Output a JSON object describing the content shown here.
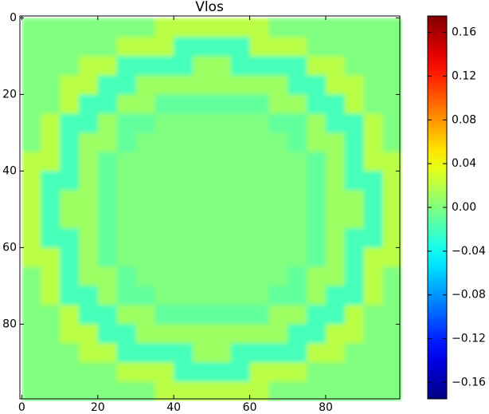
{
  "chart_data": {
    "type": "heatmap",
    "title": "Vlos",
    "colormap": "jet",
    "x": [
      2.5,
      7.5,
      12.5,
      17.5,
      22.5,
      27.5,
      32.5,
      37.5,
      42.5,
      47.5,
      52.5,
      57.5,
      62.5,
      67.5,
      72.5,
      77.5,
      82.5,
      87.5,
      92.5,
      97.5
    ],
    "y": [
      2.5,
      7.5,
      12.5,
      17.5,
      22.5,
      27.5,
      32.5,
      37.5,
      42.5,
      47.5,
      52.5,
      57.5,
      62.5,
      67.5,
      72.5,
      77.5,
      82.5,
      87.5,
      92.5,
      97.5
    ],
    "values": [
      [
        0,
        0,
        0,
        0,
        0,
        0,
        0,
        0.02,
        0.02,
        0.02,
        0.02,
        0.02,
        0.02,
        0,
        0,
        0,
        0,
        0,
        0,
        0
      ],
      [
        0,
        0,
        0,
        0,
        0,
        0.02,
        0.02,
        0.02,
        -0.02,
        -0.02,
        -0.02,
        -0.02,
        0.02,
        0.02,
        0.02,
        0,
        0,
        0,
        0,
        0
      ],
      [
        0,
        0,
        0,
        0.02,
        0.02,
        -0.02,
        -0.02,
        -0.02,
        -0.02,
        0.01,
        0.01,
        -0.02,
        -0.02,
        -0.02,
        -0.02,
        0.02,
        0.02,
        0,
        0,
        0
      ],
      [
        0,
        0,
        0.02,
        0.02,
        -0.02,
        -0.02,
        0.01,
        0.01,
        0.01,
        0.01,
        0.01,
        0.01,
        0.01,
        0.01,
        -0.02,
        -0.02,
        0.02,
        0.02,
        0,
        0
      ],
      [
        0,
        0,
        0.02,
        -0.02,
        -0.02,
        0.01,
        0.01,
        -0.01,
        -0.01,
        -0.01,
        -0.01,
        -0.01,
        -0.01,
        0.01,
        0.01,
        -0.02,
        -0.02,
        0.02,
        0,
        0
      ],
      [
        0,
        0.02,
        -0.02,
        -0.02,
        0.01,
        -0.01,
        -0.01,
        0,
        0,
        0,
        0,
        0,
        0,
        -0.01,
        -0.01,
        0.01,
        -0.02,
        -0.02,
        0.02,
        0
      ],
      [
        0,
        0.02,
        -0.02,
        0.01,
        0.01,
        -0.01,
        0,
        0,
        0,
        0,
        0,
        0,
        0,
        0,
        -0.01,
        0.01,
        0.01,
        -0.02,
        0.02,
        0
      ],
      [
        0.02,
        0.02,
        -0.02,
        0.01,
        -0.01,
        0,
        0,
        0,
        0,
        0,
        0,
        0,
        0,
        0,
        0,
        -0.01,
        0.01,
        -0.02,
        0.02,
        0.02
      ],
      [
        0.02,
        -0.02,
        -0.02,
        0.01,
        -0.01,
        0,
        0,
        0,
        0,
        0,
        0,
        0,
        0,
        0,
        0,
        -0.01,
        0.01,
        -0.02,
        -0.02,
        0.02
      ],
      [
        0.02,
        -0.02,
        0.01,
        0.01,
        -0.01,
        0,
        0,
        0,
        0,
        0,
        0,
        0,
        0,
        0,
        0,
        -0.01,
        0.01,
        0.01,
        -0.02,
        0.02
      ],
      [
        0.02,
        -0.02,
        0.01,
        0.01,
        -0.01,
        0,
        0,
        0,
        0,
        0,
        0,
        0,
        0,
        0,
        0,
        -0.01,
        0.01,
        0.01,
        -0.02,
        0.02
      ],
      [
        0.02,
        -0.02,
        -0.02,
        0.01,
        -0.01,
        0,
        0,
        0,
        0,
        0,
        0,
        0,
        0,
        0,
        0,
        -0.01,
        0.01,
        -0.02,
        -0.02,
        0.02
      ],
      [
        0.02,
        0.02,
        -0.02,
        0.01,
        -0.01,
        0,
        0,
        0,
        0,
        0,
        0,
        0,
        0,
        0,
        0,
        -0.01,
        0.01,
        -0.02,
        0.02,
        0.02
      ],
      [
        0,
        0.02,
        -0.02,
        0.01,
        0.01,
        -0.01,
        0,
        0,
        0,
        0,
        0,
        0,
        0,
        0,
        -0.01,
        0.01,
        0.01,
        -0.02,
        0.02,
        0
      ],
      [
        0,
        0.02,
        -0.02,
        -0.02,
        0.01,
        -0.01,
        -0.01,
        0,
        0,
        0,
        0,
        0,
        0,
        -0.01,
        -0.01,
        0.01,
        -0.02,
        -0.02,
        0.02,
        0
      ],
      [
        0,
        0,
        0.02,
        -0.02,
        -0.02,
        0.01,
        0.01,
        -0.01,
        -0.01,
        -0.01,
        -0.01,
        -0.01,
        -0.01,
        0.01,
        0.01,
        -0.02,
        -0.02,
        0.02,
        0,
        0
      ],
      [
        0,
        0,
        0.02,
        0.02,
        -0.02,
        -0.02,
        0.01,
        0.01,
        0.01,
        0.01,
        0.01,
        0.01,
        0.01,
        0.01,
        -0.02,
        -0.02,
        0.02,
        0.02,
        0,
        0
      ],
      [
        0,
        0,
        0,
        0.02,
        0.02,
        -0.02,
        -0.02,
        -0.02,
        -0.02,
        0.01,
        0.01,
        -0.02,
        -0.02,
        -0.02,
        -0.02,
        0.02,
        0.02,
        0,
        0,
        0
      ],
      [
        0,
        0,
        0,
        0,
        0,
        0.02,
        0.02,
        0.02,
        -0.02,
        -0.02,
        -0.02,
        -0.02,
        0.02,
        0.02,
        0.02,
        0,
        0,
        0,
        0,
        0
      ],
      [
        0,
        0,
        0,
        0,
        0,
        0,
        0,
        0.02,
        0.02,
        0.02,
        0.02,
        0.02,
        0.02,
        0,
        0,
        0,
        0,
        0,
        0,
        0
      ]
    ],
    "xlim": [
      -0.5,
      99.5
    ],
    "ylim": [
      99.5,
      -0.5
    ],
    "xticks": [
      0,
      20,
      40,
      60,
      80
    ],
    "yticks": [
      0,
      20,
      40,
      60,
      80
    ],
    "clim": [
      -0.175,
      0.175
    ],
    "cticks": [
      {
        "value": -0.16,
        "label": "−0.16"
      },
      {
        "value": -0.12,
        "label": "−0.12"
      },
      {
        "value": -0.08,
        "label": "−0.08"
      },
      {
        "value": -0.04,
        "label": "−0.04"
      },
      {
        "value": 0,
        "label": "0.00"
      },
      0.04,
      0.08,
      0.12,
      0.16
    ]
  }
}
